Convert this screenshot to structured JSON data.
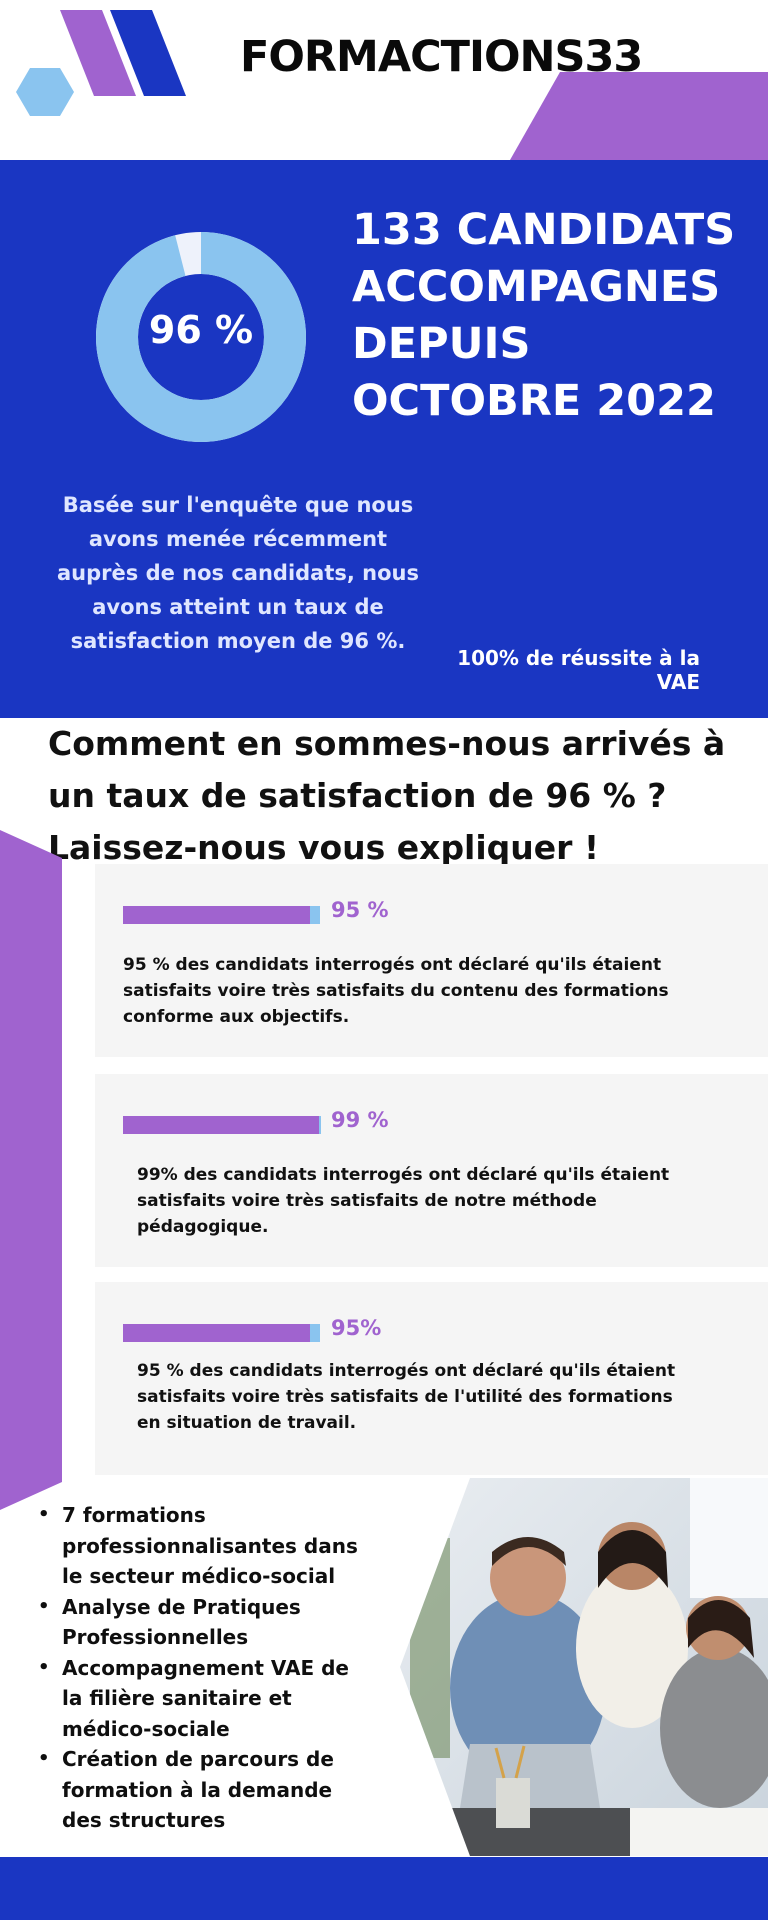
{
  "brand": {
    "name": "FORMACTIONS33",
    "colors": {
      "blue": "#1a36c2",
      "purple": "#a063cf",
      "light_blue": "#8ac4ef",
      "card_bg": "#f5f5f5"
    }
  },
  "hero": {
    "donut": {
      "percent_text": "96 %",
      "value": 0.96
    },
    "headline": "133 CANDIDATS ACCOMPAGNES DEPUIS OCTOBRE 2022",
    "body": "Basée sur l'enquête que nous avons menée récemment auprès de nos candidats, nous avons atteint un taux de satisfaction moyen de 96 %.",
    "vae_success": "100% de réussite à la VAE"
  },
  "intro": {
    "title": "Comment en sommes-nous arrivés à un taux de satisfaction de 96 % ? Laissez-nous vous expliquer !"
  },
  "stats": [
    {
      "value_label": "95 %",
      "value": 0.95,
      "text": "95 % des candidats interrogés ont déclaré qu'ils étaient satisfaits voire très satisfaits du contenu des formations conforme aux objectifs."
    },
    {
      "value_label": "99 %",
      "value": 0.99,
      "text": "99% des candidats interrogés ont déclaré qu'ils étaient satisfaits voire très satisfaits de notre méthode pédagogique."
    },
    {
      "value_label": "95%",
      "value": 0.95,
      "text": "95 % des candidats interrogés ont déclaré qu'ils étaient satisfaits voire très satisfaits de l'utilité des formations en situation de travail."
    }
  ],
  "services": [
    "7 formations professionnalisantes dans le secteur médico-social",
    "Analyse de Pratiques Professionnelles",
    "Accompagnement VAE de la filière sanitaire et médico-sociale",
    "Création de parcours de formation à la demande des structures"
  ]
}
